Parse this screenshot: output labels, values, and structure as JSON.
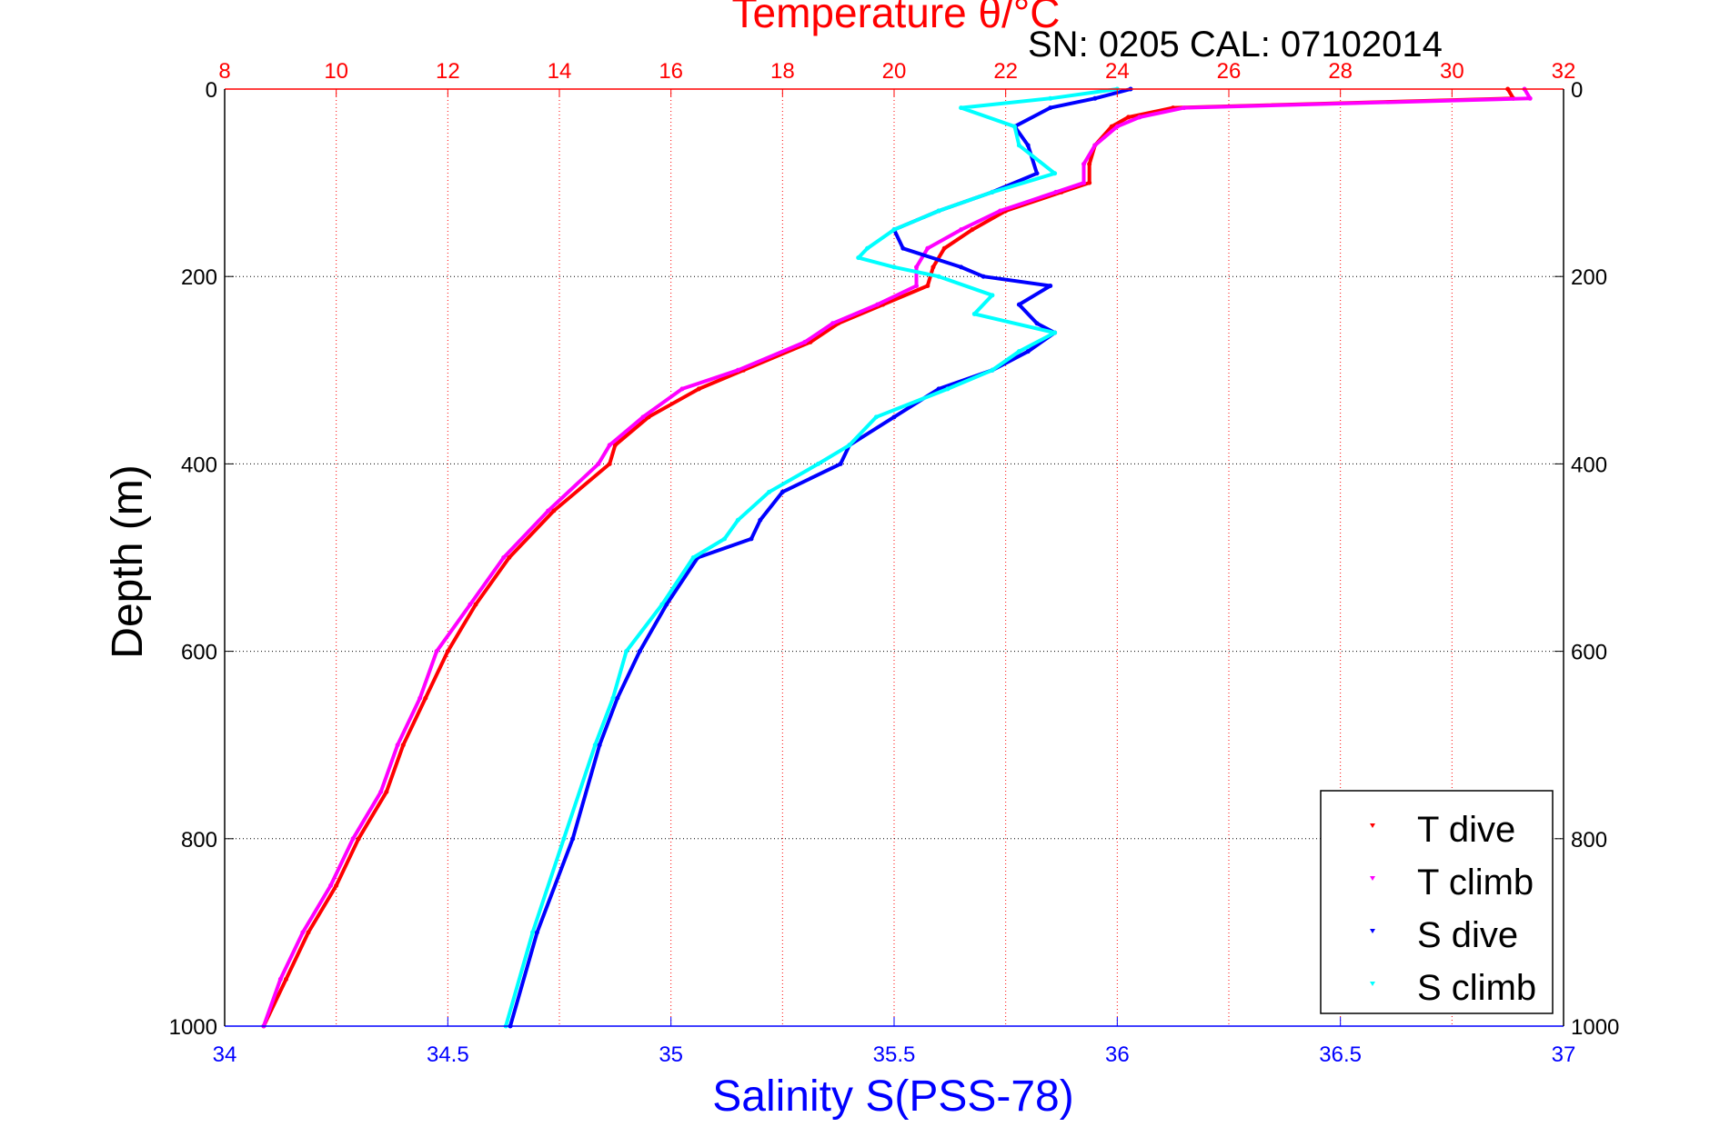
{
  "chart_data": {
    "type": "scatter",
    "title": "Temperature θ/°C",
    "subtitle": "SN: 0205  CAL: 07102014",
    "xlabel": "Salinity S(PSS-78)",
    "ylabel": "Depth (m)",
    "x_top_label": "Temperature θ/°C",
    "ylim": [
      1000,
      0
    ],
    "x_bottom_lim": [
      34,
      37
    ],
    "x_top_lim": [
      8,
      32
    ],
    "y_ticks": [
      "0",
      "200",
      "400",
      "600",
      "800",
      "1000"
    ],
    "x_bottom_ticks": [
      "34",
      "34.5",
      "35",
      "35.5",
      "36",
      "36.5",
      "37"
    ],
    "x_top_ticks": [
      "8",
      "10",
      "12",
      "14",
      "16",
      "18",
      "20",
      "22",
      "24",
      "26",
      "28",
      "30",
      "32"
    ],
    "grid": true,
    "legend_position": "bottom-right",
    "colors": {
      "t_dive": "#ff0000",
      "t_climb": "#ff00ff",
      "s_dive": "#0000ff",
      "s_climb": "#00ffff",
      "top_axis": "#ff0000",
      "bottom_axis": "#0000ff"
    },
    "series": [
      {
        "name": "T dive",
        "axis": "top",
        "depth": [
          0,
          10,
          20,
          30,
          40,
          60,
          80,
          100,
          110,
          130,
          150,
          170,
          190,
          210,
          230,
          250,
          270,
          300,
          320,
          350,
          380,
          400,
          450,
          500,
          550,
          600,
          650,
          700,
          750,
          800,
          850,
          900,
          950,
          1000
        ],
        "values": [
          31.0,
          31.1,
          25.0,
          24.2,
          23.9,
          23.6,
          23.5,
          23.5,
          23.0,
          22.0,
          21.4,
          20.9,
          20.7,
          20.6,
          19.8,
          19.0,
          18.5,
          17.3,
          16.5,
          15.6,
          15.0,
          14.9,
          13.9,
          13.1,
          12.5,
          12.0,
          11.6,
          11.2,
          10.9,
          10.4,
          10.0,
          9.5,
          9.1,
          8.7
        ]
      },
      {
        "name": "T climb",
        "axis": "top",
        "depth": [
          0,
          10,
          20,
          30,
          40,
          60,
          80,
          100,
          110,
          130,
          150,
          170,
          190,
          210,
          230,
          250,
          270,
          300,
          320,
          350,
          380,
          400,
          450,
          500,
          550,
          600,
          650,
          700,
          750,
          800,
          850,
          900,
          950,
          1000
        ],
        "values": [
          31.3,
          31.4,
          25.2,
          24.4,
          24.0,
          23.6,
          23.4,
          23.4,
          22.9,
          21.9,
          21.2,
          20.6,
          20.4,
          20.4,
          19.7,
          18.9,
          18.4,
          17.2,
          16.2,
          15.5,
          14.9,
          14.7,
          13.8,
          13.0,
          12.4,
          11.8,
          11.5,
          11.1,
          10.8,
          10.3,
          9.9,
          9.4,
          9.0,
          8.7
        ]
      },
      {
        "name": "S dive",
        "axis": "bottom",
        "depth": [
          0,
          10,
          20,
          40,
          60,
          90,
          110,
          130,
          150,
          170,
          190,
          200,
          210,
          230,
          250,
          260,
          280,
          300,
          320,
          350,
          380,
          400,
          430,
          460,
          480,
          500,
          550,
          600,
          650,
          700,
          800,
          900,
          1000
        ],
        "values": [
          36.03,
          35.95,
          35.85,
          35.77,
          35.8,
          35.82,
          35.72,
          35.6,
          35.5,
          35.52,
          35.65,
          35.7,
          35.85,
          35.78,
          35.82,
          35.86,
          35.8,
          35.72,
          35.6,
          35.5,
          35.4,
          35.38,
          35.25,
          35.2,
          35.18,
          35.06,
          34.99,
          34.93,
          34.88,
          34.84,
          34.78,
          34.7,
          34.64
        ]
      },
      {
        "name": "S climb",
        "axis": "bottom",
        "depth": [
          0,
          10,
          20,
          40,
          60,
          90,
          110,
          130,
          150,
          170,
          180,
          190,
          200,
          220,
          240,
          260,
          280,
          300,
          320,
          350,
          380,
          400,
          430,
          460,
          480,
          500,
          550,
          600,
          650,
          700,
          800,
          900,
          1000
        ],
        "values": [
          36.0,
          35.85,
          35.65,
          35.77,
          35.78,
          35.86,
          35.72,
          35.6,
          35.5,
          35.44,
          35.42,
          35.5,
          35.6,
          35.72,
          35.68,
          35.86,
          35.78,
          35.72,
          35.62,
          35.46,
          35.4,
          35.33,
          35.22,
          35.15,
          35.12,
          35.05,
          34.98,
          34.9,
          34.87,
          34.83,
          34.76,
          34.69,
          34.63
        ]
      }
    ]
  }
}
